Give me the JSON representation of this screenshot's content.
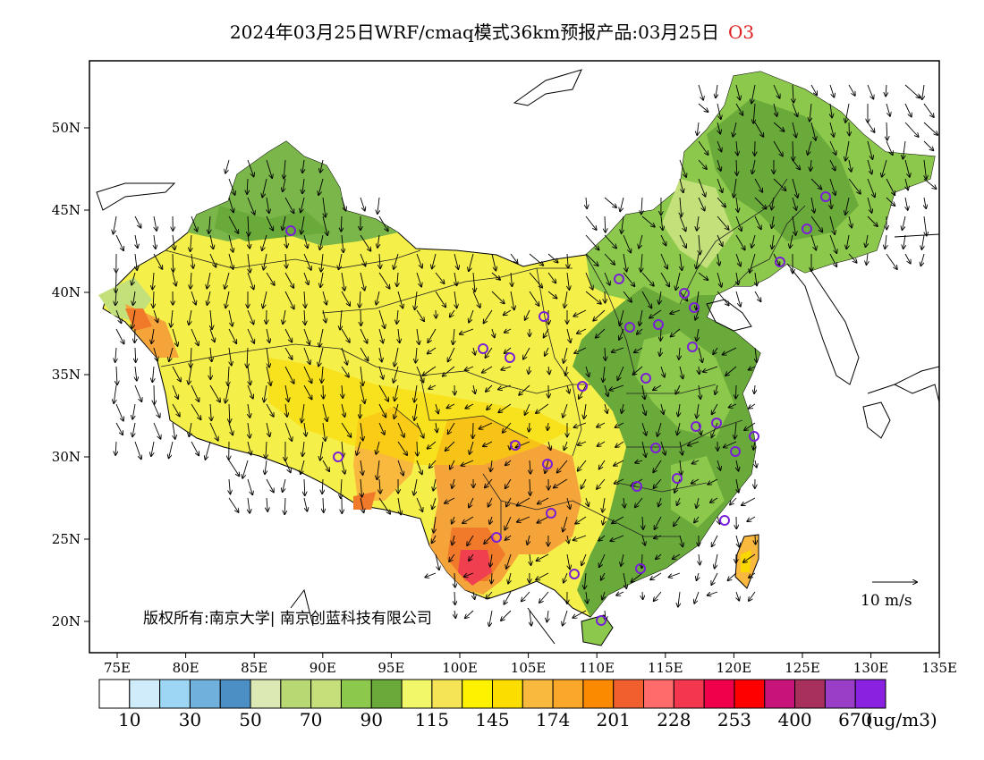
{
  "title": {
    "main": "2024年03月25日WRF/cmaq模式36km预报产品:03月25日",
    "species": "O3"
  },
  "map": {
    "lat_ticks": [
      "50N",
      "45N",
      "40N",
      "35N",
      "30N",
      "25N",
      "20N"
    ],
    "lon_ticks": [
      "75E",
      "80E",
      "85E",
      "90E",
      "95E",
      "100E",
      "105E",
      "110E",
      "115E",
      "120E",
      "125E",
      "130E",
      "135E"
    ],
    "copyright": "版权所有:南京大学| 南京创蓝科技有限公司",
    "wind_ref_label": "10 m/s",
    "colors": {
      "green_dark": "#6aaa3a",
      "green_mid": "#8cc84b",
      "green_light": "#c3e07a",
      "yellow": "#f5ef4a",
      "yellow_gold": "#fad800",
      "orange": "#f5a43a",
      "orange_dark": "#f07a2a",
      "red": "#f04050",
      "station": "#7a1fd8"
    }
  },
  "colorbar": {
    "colors": [
      "#ffffff",
      "#d0ecfa",
      "#9cd6f4",
      "#6fb1dc",
      "#4b8fc4",
      "#dde9b4",
      "#b8d873",
      "#c5e07a",
      "#8cc84b",
      "#6aaa3a",
      "#f2f76a",
      "#f5e556",
      "#fff200",
      "#fbde00",
      "#f9b83e",
      "#fba72a",
      "#fb8a00",
      "#f15f2e",
      "#ff6a6a",
      "#f5364f",
      "#f0004a",
      "#ff0000",
      "#c8137a",
      "#a8305c",
      "#9a3ec8",
      "#8a20e0"
    ],
    "labels": [
      "10",
      "30",
      "50",
      "70",
      "90",
      "115",
      "145",
      "174",
      "201",
      "228",
      "253",
      "400",
      "670"
    ],
    "unit": "(ug/m3)"
  }
}
